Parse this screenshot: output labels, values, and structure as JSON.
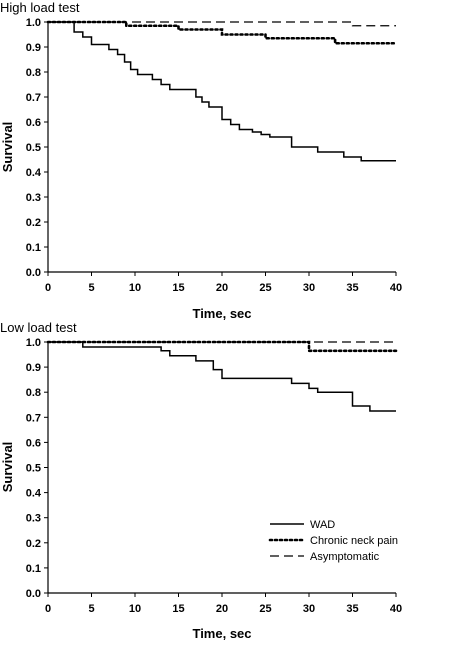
{
  "chart_data": [
    {
      "type": "line",
      "step": true,
      "title": "High load test",
      "xlabel": "Time, sec",
      "ylabel": "Survival",
      "xlim": [
        0,
        40
      ],
      "ylim": [
        0,
        1.0
      ],
      "x_ticks": [
        "0",
        "5",
        "10",
        "15",
        "20",
        "25",
        "30",
        "35",
        "40"
      ],
      "y_ticks": [
        "0.0",
        "0.1",
        "0.2",
        "0.3",
        "0.4",
        "0.5",
        "0.6",
        "0.7",
        "0.8",
        "0.9",
        "1.0"
      ],
      "grid": false,
      "series": [
        {
          "name": "WAD",
          "dash": "solid",
          "x": [
            0,
            3,
            4,
            5,
            7,
            8,
            8.8,
            9.5,
            10.3,
            12,
            13,
            14,
            15,
            17,
            17.7,
            18.5,
            20,
            21,
            22,
            23.5,
            24.5,
            25.5,
            28,
            31,
            34,
            36,
            40
          ],
          "y": [
            1.0,
            0.96,
            0.94,
            0.91,
            0.89,
            0.87,
            0.84,
            0.81,
            0.79,
            0.77,
            0.75,
            0.73,
            0.73,
            0.7,
            0.68,
            0.66,
            0.61,
            0.59,
            0.57,
            0.56,
            0.55,
            0.54,
            0.5,
            0.48,
            0.46,
            0.445,
            0.445
          ]
        },
        {
          "name": "Chronic neck pain",
          "dash": "dotted",
          "x": [
            0,
            9,
            15,
            20,
            25,
            33,
            40
          ],
          "y": [
            1.0,
            0.985,
            0.97,
            0.95,
            0.935,
            0.915,
            0.915
          ]
        },
        {
          "name": "Asymptomatic",
          "dash": "dashed",
          "x": [
            0,
            35,
            40
          ],
          "y": [
            1.0,
            0.985,
            0.985
          ]
        }
      ]
    },
    {
      "type": "line",
      "step": true,
      "title": "Low load test",
      "xlabel": "Time, sec",
      "ylabel": "Survival",
      "xlim": [
        0,
        40
      ],
      "ylim": [
        0,
        1.0
      ],
      "x_ticks": [
        "0",
        "5",
        "10",
        "15",
        "20",
        "25",
        "30",
        "35",
        "40"
      ],
      "y_ticks": [
        "0.0",
        "0.1",
        "0.2",
        "0.3",
        "0.4",
        "0.5",
        "0.6",
        "0.7",
        "0.8",
        "0.9",
        "1.0"
      ],
      "grid": false,
      "legend": {
        "position": "bottom-right",
        "entries": [
          "WAD",
          "Chronic neck pain",
          "Asymptomatic"
        ]
      },
      "series": [
        {
          "name": "WAD",
          "dash": "solid",
          "x": [
            0,
            4,
            13,
            14,
            17,
            19,
            20,
            28,
            30,
            31,
            35,
            37,
            40
          ],
          "y": [
            1.0,
            0.98,
            0.965,
            0.945,
            0.925,
            0.89,
            0.855,
            0.835,
            0.815,
            0.8,
            0.745,
            0.725,
            0.725
          ]
        },
        {
          "name": "Chronic neck pain",
          "dash": "dotted",
          "x": [
            0,
            30,
            40
          ],
          "y": [
            1.0,
            0.965,
            0.965
          ]
        },
        {
          "name": "Asymptomatic",
          "dash": "dashed",
          "x": [
            0,
            40
          ],
          "y": [
            1.0,
            1.0
          ]
        }
      ]
    }
  ]
}
